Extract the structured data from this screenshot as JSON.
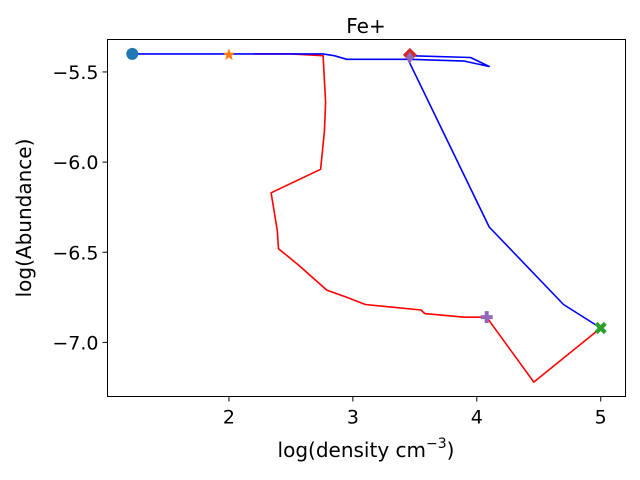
{
  "chart_data": {
    "type": "line",
    "title": "Fe+",
    "xlabel_main": "log(density cm",
    "xlabel_sup": "−3",
    "xlabel_tail": ")",
    "ylabel": "log(Abundance)",
    "xlim": [
      1.02,
      5.2
    ],
    "ylim": [
      -7.3,
      -5.32
    ],
    "xticks": [
      2,
      3,
      4,
      5
    ],
    "xtick_labels": [
      "2",
      "3",
      "4",
      "5"
    ],
    "yticks": [
      -5.5,
      -6.0,
      -6.5,
      -7.0
    ],
    "ytick_labels": [
      "−5.5",
      "−6.0",
      "−6.5",
      "−7.0"
    ],
    "grid": false,
    "series": [
      {
        "color": "#ff0000",
        "x": [
          2.2,
          2.5,
          2.76,
          2.78,
          2.77,
          2.74,
          2.34,
          2.39,
          2.4,
          2.56,
          2.79,
          2.95,
          3.1,
          3.55,
          3.58,
          3.9,
          4.08,
          4.46,
          5.0
        ],
        "y": [
          -5.4,
          -5.4,
          -5.41,
          -5.67,
          -5.83,
          -6.04,
          -6.17,
          -6.38,
          -6.48,
          -6.57,
          -6.71,
          -6.75,
          -6.79,
          -6.82,
          -6.84,
          -6.86,
          -6.86,
          -7.22,
          -6.92
        ]
      },
      {
        "color": "#0000ff",
        "x": [
          1.22,
          2.0,
          2.76,
          2.85,
          2.95,
          3.46,
          3.9,
          4.1,
          3.95,
          3.45,
          3.43,
          4.1,
          4.7,
          5.0
        ],
        "y": [
          -5.4,
          -5.4,
          -5.4,
          -5.41,
          -5.43,
          -5.43,
          -5.44,
          -5.47,
          -5.42,
          -5.41,
          -5.41,
          -6.36,
          -6.79,
          -6.92
        ]
      }
    ],
    "markers": [
      {
        "shape": "circle",
        "color": "#1f77b4",
        "x": 1.22,
        "y": -5.4
      },
      {
        "shape": "star",
        "color": "#ff7f0e",
        "x": 2.0,
        "y": -5.405
      },
      {
        "shape": "diamond",
        "color": "#d62728",
        "x": 3.46,
        "y": -5.405
      },
      {
        "shape": "thin-diamond",
        "color": "#9467bd",
        "x": 3.46,
        "y": -5.42
      },
      {
        "shape": "plus",
        "color": "#9467bd",
        "x": 4.08,
        "y": -6.86
      },
      {
        "shape": "x",
        "color": "#2ca02c",
        "x": 5.0,
        "y": -6.92
      }
    ]
  }
}
